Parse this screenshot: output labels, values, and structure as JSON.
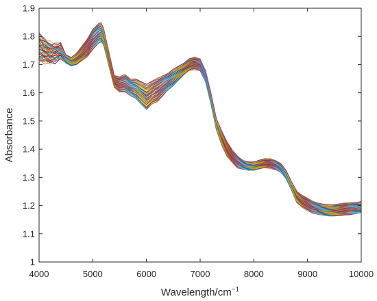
{
  "chart_data": {
    "type": "line",
    "title": "",
    "xlabel": "Wavelength/cm",
    "xlabel_superscript": "−1",
    "ylabel": "Absorbance",
    "xlim": [
      4000,
      10000
    ],
    "ylim": [
      1,
      1.9
    ],
    "xticks": [
      4000,
      5000,
      6000,
      7000,
      8000,
      9000,
      10000
    ],
    "yticks": [
      1,
      1.1,
      1.2,
      1.3,
      1.4,
      1.5,
      1.6,
      1.7,
      1.8,
      1.9
    ],
    "grid": false,
    "legend": "none",
    "series_count": 60,
    "series_note": "many overlapping NIR spectra drawn in MATLAB default colors",
    "colors": [
      "#0072BD",
      "#D95319",
      "#EDB120",
      "#7E2F8E",
      "#77AC30",
      "#4DBEEE",
      "#A2142F"
    ],
    "x": [
      4000,
      4100,
      4200,
      4300,
      4400,
      4500,
      4600,
      4700,
      4800,
      4900,
      5000,
      5100,
      5150,
      5200,
      5300,
      5400,
      5500,
      5600,
      5700,
      5800,
      5900,
      6000,
      6100,
      6200,
      6300,
      6400,
      6500,
      6600,
      6700,
      6800,
      6900,
      7000,
      7100,
      7200,
      7300,
      7400,
      7500,
      7600,
      7700,
      7800,
      7900,
      8000,
      8100,
      8200,
      8300,
      8400,
      8500,
      8600,
      8700,
      8800,
      8900,
      9000,
      9100,
      9200,
      9300,
      9400,
      9500,
      9600,
      9700,
      9800,
      9900,
      10000
    ],
    "mean_spectrum": [
      1.76,
      1.75,
      1.74,
      1.74,
      1.75,
      1.72,
      1.71,
      1.72,
      1.74,
      1.76,
      1.79,
      1.81,
      1.815,
      1.8,
      1.72,
      1.64,
      1.63,
      1.635,
      1.62,
      1.615,
      1.6,
      1.585,
      1.6,
      1.61,
      1.625,
      1.64,
      1.655,
      1.67,
      1.685,
      1.7,
      1.705,
      1.7,
      1.66,
      1.58,
      1.49,
      1.44,
      1.4,
      1.375,
      1.355,
      1.345,
      1.34,
      1.34,
      1.345,
      1.35,
      1.35,
      1.345,
      1.335,
      1.31,
      1.27,
      1.23,
      1.215,
      1.205,
      1.195,
      1.19,
      1.185,
      1.183,
      1.183,
      1.185,
      1.188,
      1.19,
      1.192,
      1.195
    ],
    "spread": [
      0.045,
      0.04,
      0.035,
      0.03,
      0.025,
      0.015,
      0.015,
      0.02,
      0.025,
      0.03,
      0.035,
      0.035,
      0.035,
      0.03,
      0.025,
      0.02,
      0.025,
      0.03,
      0.03,
      0.035,
      0.04,
      0.045,
      0.04,
      0.04,
      0.035,
      0.03,
      0.03,
      0.025,
      0.02,
      0.02,
      0.02,
      0.02,
      0.02,
      0.02,
      0.02,
      0.025,
      0.025,
      0.02,
      0.02,
      0.015,
      0.015,
      0.015,
      0.015,
      0.015,
      0.015,
      0.015,
      0.015,
      0.015,
      0.015,
      0.02,
      0.02,
      0.02,
      0.02,
      0.02,
      0.02,
      0.02,
      0.02,
      0.02,
      0.02,
      0.02,
      0.02,
      0.02
    ]
  }
}
